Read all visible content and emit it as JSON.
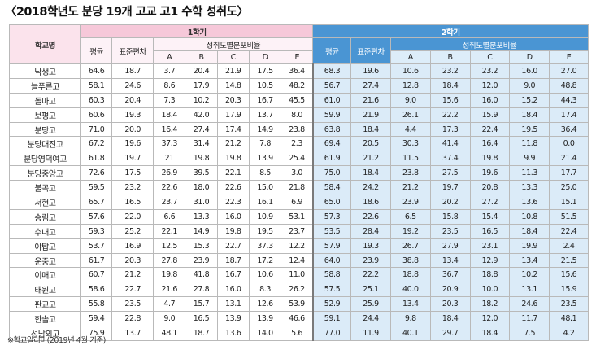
{
  "title": "〈2018학년도 분당 19개 고교 고1 수학 성취도〉",
  "note": "※학교알리미(2019년 4월 기준)",
  "headers": {
    "school": "학교명",
    "sem1": "1학기",
    "sem2": "2학기",
    "avg": "평균",
    "std": "표준편차",
    "ratio": "성취도별분포비율",
    "grades": [
      "A",
      "B",
      "C",
      "D",
      "E"
    ]
  },
  "rows": [
    {
      "name": "낙생고",
      "s1": [
        "64.6",
        "18.7",
        "3.7",
        "20.4",
        "21.9",
        "17.5",
        "36.4"
      ],
      "s2": [
        "68.3",
        "19.6",
        "10.6",
        "23.2",
        "23.2",
        "16.0",
        "27.0"
      ]
    },
    {
      "name": "늘푸른고",
      "s1": [
        "58.1",
        "24.6",
        "8.6",
        "17.9",
        "14.8",
        "10.5",
        "48.2"
      ],
      "s2": [
        "56.7",
        "27.4",
        "12.8",
        "18.4",
        "12.0",
        "9.0",
        "48.8"
      ]
    },
    {
      "name": "돌마고",
      "s1": [
        "60.3",
        "20.4",
        "7.3",
        "10.2",
        "20.3",
        "16.7",
        "45.5"
      ],
      "s2": [
        "61.0",
        "21.6",
        "9.0",
        "15.6",
        "16.0",
        "15.2",
        "44.3"
      ]
    },
    {
      "name": "보평고",
      "s1": [
        "60.6",
        "19.3",
        "18.4",
        "42.0",
        "17.9",
        "13.7",
        "8.0"
      ],
      "s2": [
        "59.9",
        "21.9",
        "26.1",
        "22.2",
        "15.9",
        "18.4",
        "17.4"
      ]
    },
    {
      "name": "분당고",
      "s1": [
        "71.0",
        "20.0",
        "16.4",
        "27.4",
        "17.4",
        "14.9",
        "23.8"
      ],
      "s2": [
        "63.8",
        "18.4",
        "4.4",
        "17.3",
        "22.4",
        "19.5",
        "36.4"
      ]
    },
    {
      "name": "분당대진고",
      "s1": [
        "67.2",
        "19.6",
        "37.3",
        "31.4",
        "21.2",
        "7.8",
        "2.3"
      ],
      "s2": [
        "69.4",
        "20.5",
        "30.3",
        "41.4",
        "16.4",
        "11.8",
        "0.0"
      ]
    },
    {
      "name": "분당영덕여고",
      "s1": [
        "61.8",
        "19.7",
        "21",
        "19.8",
        "19.8",
        "13.9",
        "25.4"
      ],
      "s2": [
        "61.9",
        "21.2",
        "11.5",
        "37.4",
        "19.8",
        "9.9",
        "21.4"
      ]
    },
    {
      "name": "분당중앙고",
      "s1": [
        "72.6",
        "17.5",
        "26.9",
        "39.5",
        "22.1",
        "8.5",
        "3.0"
      ],
      "s2": [
        "75.0",
        "18.4",
        "23.8",
        "27.5",
        "19.6",
        "11.3",
        "17.7"
      ]
    },
    {
      "name": "불곡고",
      "s1": [
        "59.5",
        "23.2",
        "22.6",
        "18.0",
        "22.6",
        "15.0",
        "21.8"
      ],
      "s2": [
        "58.4",
        "24.2",
        "21.2",
        "19.7",
        "20.8",
        "13.3",
        "25.0"
      ]
    },
    {
      "name": "서현고",
      "s1": [
        "65.7",
        "16.5",
        "23.7",
        "31.0",
        "22.3",
        "16.1",
        "6.9"
      ],
      "s2": [
        "65.0",
        "18.6",
        "23.9",
        "20.2",
        "27.2",
        "13.6",
        "15.1"
      ]
    },
    {
      "name": "송림고",
      "s1": [
        "57.6",
        "22.0",
        "6.6",
        "13.3",
        "16.0",
        "10.9",
        "53.1"
      ],
      "s2": [
        "57.3",
        "22.6",
        "6.5",
        "15.8",
        "15.4",
        "10.8",
        "51.5"
      ]
    },
    {
      "name": "수내고",
      "s1": [
        "59.3",
        "25.2",
        "22.1",
        "14.9",
        "19.8",
        "19.5",
        "23.7"
      ],
      "s2": [
        "53.5",
        "28.4",
        "19.2",
        "23.5",
        "16.5",
        "18.4",
        "22.4"
      ]
    },
    {
      "name": "야탑고",
      "s1": [
        "53.7",
        "16.9",
        "12.5",
        "15.3",
        "22.7",
        "37.3",
        "12.2"
      ],
      "s2": [
        "57.9",
        "19.3",
        "26.7",
        "27.9",
        "23.1",
        "19.9",
        "2.4"
      ]
    },
    {
      "name": "운중고",
      "s1": [
        "61.7",
        "20.3",
        "27.8",
        "23.9",
        "18.7",
        "17.2",
        "12.4"
      ],
      "s2": [
        "64.0",
        "23.9",
        "38.8",
        "13.4",
        "12.9",
        "13.4",
        "21.5"
      ]
    },
    {
      "name": "이매고",
      "s1": [
        "60.7",
        "21.2",
        "19.8",
        "41.8",
        "16.7",
        "10.6",
        "11.0"
      ],
      "s2": [
        "58.8",
        "22.2",
        "18.8",
        "36.7",
        "18.8",
        "10.2",
        "15.6"
      ]
    },
    {
      "name": "태원고",
      "s1": [
        "58.6",
        "22.7",
        "21.6",
        "27.8",
        "16.0",
        "8.3",
        "26.2"
      ],
      "s2": [
        "57.5",
        "25.1",
        "40.0",
        "20.9",
        "10.0",
        "13.1",
        "15.9"
      ]
    },
    {
      "name": "판교고",
      "s1": [
        "55.8",
        "23.5",
        "4.7",
        "15.7",
        "13.1",
        "12.6",
        "53.9"
      ],
      "s2": [
        "52.9",
        "25.9",
        "13.4",
        "20.3",
        "18.2",
        "24.6",
        "23.5"
      ]
    },
    {
      "name": "한솔고",
      "s1": [
        "59.4",
        "22.8",
        "9.0",
        "16.5",
        "13.9",
        "13.9",
        "46.6"
      ],
      "s2": [
        "59.1",
        "24.4",
        "9.8",
        "18.4",
        "12.0",
        "11.7",
        "48.1"
      ]
    },
    {
      "name": "성남외고",
      "s1": [
        "75.9",
        "13.7",
        "48.1",
        "18.7",
        "13.6",
        "14.0",
        "5.6"
      ],
      "s2": [
        "77.0",
        "11.9",
        "40.1",
        "29.7",
        "18.4",
        "7.5",
        "4.2"
      ]
    }
  ]
}
